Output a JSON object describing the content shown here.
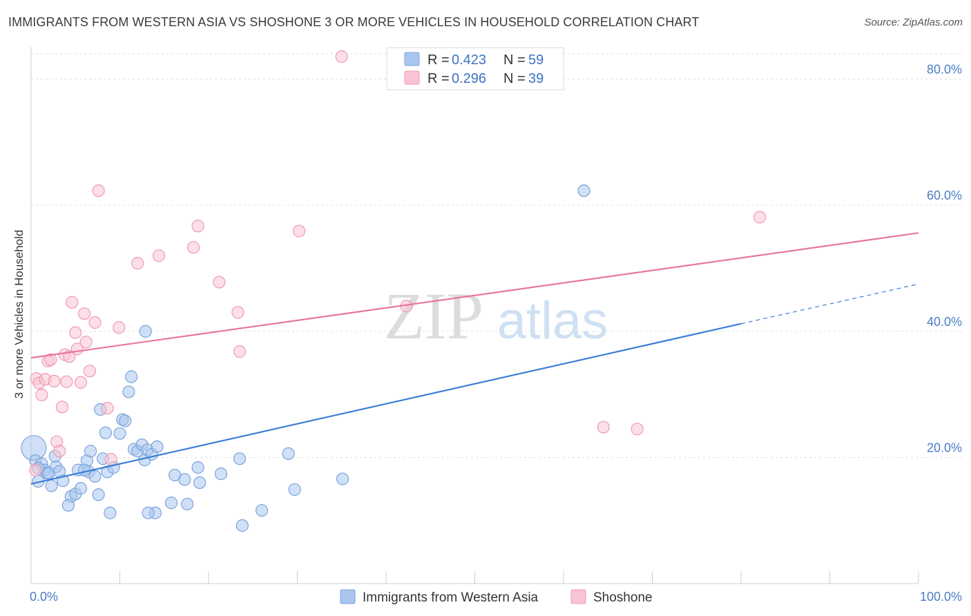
{
  "title": "IMMIGRANTS FROM WESTERN ASIA VS SHOSHONE 3 OR MORE VEHICLES IN HOUSEHOLD CORRELATION CHART",
  "source": "Source: ZipAtlas.com",
  "watermark": {
    "zip": "ZIP",
    "atlas": "atlas"
  },
  "legend": {
    "r_label": "R =",
    "n_label": "N =",
    "rows": [
      {
        "r": "0.423",
        "n": "59",
        "color": "#a9c6ef",
        "stroke": "#7aa3dc"
      },
      {
        "r": "0.296",
        "n": "39",
        "color": "#f9c4d3",
        "stroke": "#ee9ab3"
      }
    ]
  },
  "chart_data": {
    "type": "scatter",
    "title": "IMMIGRANTS FROM WESTERN ASIA VS SHOSHONE 3 OR MORE VEHICLES IN HOUSEHOLD CORRELATION CHART",
    "xlabel": "",
    "ylabel": "3 or more Vehicles in Household",
    "xlim": [
      0,
      100
    ],
    "ylim": [
      0,
      84
    ],
    "x_tick_labels": [
      {
        "value": 0,
        "label": "0.0%"
      },
      {
        "value": 100,
        "label": "100.0%"
      }
    ],
    "y_ticks": [
      {
        "value": 20,
        "label": "20.0%"
      },
      {
        "value": 40,
        "label": "40.0%"
      },
      {
        "value": 60,
        "label": "60.0%"
      },
      {
        "value": 80,
        "label": "80.0%"
      }
    ],
    "grid": true,
    "legend_position": "top-center",
    "series": [
      {
        "name": "Immigrants from Western Asia",
        "color": "#a9c6ef",
        "line_color": "#3b7dd8",
        "trend": {
          "x0": 0,
          "y0": 15.8,
          "x1": 80,
          "y1": 41.2,
          "dash_to_x": 100,
          "dash_to_y": 47.5
        },
        "points": [
          [
            0.3,
            21.5
          ],
          [
            0.5,
            19.5
          ],
          [
            0.8,
            16.2
          ],
          [
            1.2,
            19.0
          ],
          [
            1.5,
            18.0
          ],
          [
            1.8,
            17.5
          ],
          [
            2.3,
            15.5
          ],
          [
            2.8,
            18.5
          ],
          [
            2.7,
            20.2
          ],
          [
            3.2,
            17.8
          ],
          [
            3.6,
            16.3
          ],
          [
            4.5,
            13.8
          ],
          [
            4.2,
            12.4
          ],
          [
            5.0,
            14.2
          ],
          [
            5.6,
            15.1
          ],
          [
            5.3,
            18.0
          ],
          [
            6.3,
            19.5
          ],
          [
            6.7,
            21.0
          ],
          [
            6.5,
            17.7
          ],
          [
            7.2,
            17.0
          ],
          [
            7.6,
            14.1
          ],
          [
            7.8,
            27.6
          ],
          [
            8.1,
            19.8
          ],
          [
            8.4,
            23.9
          ],
          [
            8.6,
            17.7
          ],
          [
            8.9,
            11.2
          ],
          [
            9.3,
            18.4
          ],
          [
            10.0,
            23.8
          ],
          [
            10.3,
            26.0
          ],
          [
            10.6,
            25.8
          ],
          [
            11.0,
            30.4
          ],
          [
            11.3,
            32.8
          ],
          [
            11.6,
            21.3
          ],
          [
            12.0,
            21.0
          ],
          [
            12.5,
            22.0
          ],
          [
            12.8,
            19.6
          ],
          [
            13.1,
            21.2
          ],
          [
            13.6,
            20.5
          ],
          [
            14.0,
            11.2
          ],
          [
            14.2,
            21.7
          ],
          [
            12.9,
            40.0
          ],
          [
            13.2,
            11.2
          ],
          [
            15.8,
            12.8
          ],
          [
            16.2,
            17.2
          ],
          [
            17.3,
            16.5
          ],
          [
            17.6,
            12.6
          ],
          [
            18.8,
            18.4
          ],
          [
            19.0,
            16.0
          ],
          [
            21.4,
            17.4
          ],
          [
            23.5,
            19.8
          ],
          [
            23.8,
            9.2
          ],
          [
            26.0,
            11.6
          ],
          [
            29.0,
            20.6
          ],
          [
            29.7,
            14.9
          ],
          [
            35.1,
            16.6
          ],
          [
            62.3,
            62.3
          ],
          [
            0.8,
            18.3
          ],
          [
            2.0,
            17.5
          ],
          [
            6.0,
            18.0
          ]
        ]
      },
      {
        "name": "Shoshone",
        "color": "#f9c4d3",
        "line_color": "#e8769a",
        "trend": {
          "x0": 0,
          "y0": 35.8,
          "x1": 100,
          "y1": 55.6
        },
        "points": [
          [
            0.5,
            18.0
          ],
          [
            0.6,
            32.5
          ],
          [
            0.9,
            31.8
          ],
          [
            1.2,
            29.9
          ],
          [
            1.6,
            32.4
          ],
          [
            1.9,
            35.3
          ],
          [
            2.2,
            35.5
          ],
          [
            2.6,
            32.1
          ],
          [
            2.9,
            22.5
          ],
          [
            3.2,
            21.0
          ],
          [
            3.5,
            28.0
          ],
          [
            3.8,
            36.3
          ],
          [
            4.0,
            32.0
          ],
          [
            4.3,
            36.0
          ],
          [
            4.6,
            44.6
          ],
          [
            5.0,
            39.8
          ],
          [
            5.2,
            37.2
          ],
          [
            5.6,
            31.9
          ],
          [
            6.0,
            42.8
          ],
          [
            6.2,
            38.3
          ],
          [
            6.6,
            33.7
          ],
          [
            7.2,
            41.4
          ],
          [
            7.6,
            62.3
          ],
          [
            8.6,
            27.8
          ],
          [
            9.0,
            19.7
          ],
          [
            9.9,
            40.6
          ],
          [
            12.0,
            50.8
          ],
          [
            14.4,
            52.0
          ],
          [
            18.3,
            53.3
          ],
          [
            18.8,
            56.7
          ],
          [
            21.2,
            47.8
          ],
          [
            23.3,
            43.0
          ],
          [
            23.5,
            36.8
          ],
          [
            30.2,
            55.9
          ],
          [
            35.0,
            86.0
          ],
          [
            42.3,
            44.0
          ],
          [
            64.5,
            24.8
          ],
          [
            68.3,
            24.5
          ],
          [
            82.1,
            58.1
          ]
        ]
      }
    ]
  },
  "bottom_legend": [
    {
      "label": "Immigrants from Western Asia",
      "color": "#a9c6ef",
      "stroke": "#7aa3dc"
    },
    {
      "label": "Shoshone",
      "color": "#f9c4d3",
      "stroke": "#ee9ab3"
    }
  ]
}
